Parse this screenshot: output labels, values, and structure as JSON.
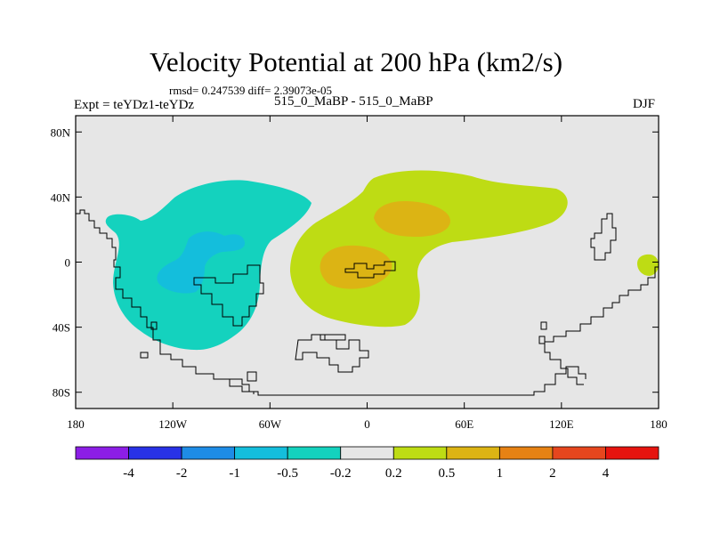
{
  "header": {
    "title": "Velocity Potential at 200 hPa (km2/s)",
    "stats": "rmsd= 0.247539 diff= 2.39073e-05",
    "left_label": "Expt = teYDz1-teYDz",
    "center_label": "515_0_MaBP - 515_0_MaBP",
    "right_label": "DJF"
  },
  "chart_data": {
    "type": "heatmap",
    "title": "Velocity Potential at 200 hPa (km2/s)",
    "variable": "Velocity Potential",
    "level": "200 hPa",
    "units": "km2/s",
    "season": "DJF",
    "x_range": [
      -180,
      180
    ],
    "y_range": [
      -90,
      90
    ],
    "x_ticks": [
      {
        "value": -180,
        "label": "180"
      },
      {
        "value": -120,
        "label": "120W"
      },
      {
        "value": -60,
        "label": "60W"
      },
      {
        "value": 0,
        "label": "0"
      },
      {
        "value": 60,
        "label": "60E"
      },
      {
        "value": 120,
        "label": "120E"
      },
      {
        "value": 180,
        "label": "180"
      }
    ],
    "y_ticks": [
      {
        "value": 80,
        "label": "80N"
      },
      {
        "value": 40,
        "label": "40N"
      },
      {
        "value": 0,
        "label": "0"
      },
      {
        "value": -40,
        "label": "40S"
      },
      {
        "value": -80,
        "label": "80S"
      }
    ],
    "colorbar": {
      "colors": [
        "#8c1ee6",
        "#2832e6",
        "#1e8ce6",
        "#14bedc",
        "#14d2be",
        "#e6e6e6",
        "#bedc14",
        "#dcb414",
        "#e68214",
        "#e6461e",
        "#e6140f"
      ],
      "labels": [
        "-4",
        "-2",
        "-1",
        "-0.5",
        "-0.2",
        "0.2",
        "0.5",
        "1",
        "2",
        "4"
      ]
    },
    "anomalies": [
      {
        "name": "western-negative",
        "level": "-0.2",
        "color": "#14d2be",
        "center": [
          -115,
          10
        ]
      },
      {
        "name": "western-core",
        "level": "-0.5",
        "color": "#14bedc",
        "center": [
          -113,
          0
        ]
      },
      {
        "name": "eastern-positive",
        "level": "0.2",
        "color": "#bedc14",
        "center": [
          40,
          20
        ]
      },
      {
        "name": "eastern-core-north",
        "level": "0.5",
        "color": "#dcb414",
        "center": [
          30,
          25
        ]
      },
      {
        "name": "eastern-core-equator",
        "level": "0.5",
        "color": "#dcb414",
        "center": [
          0,
          -2
        ]
      },
      {
        "name": "dateline-positive",
        "level": "0.2",
        "color": "#bedc14",
        "center": [
          173,
          0
        ]
      }
    ]
  }
}
